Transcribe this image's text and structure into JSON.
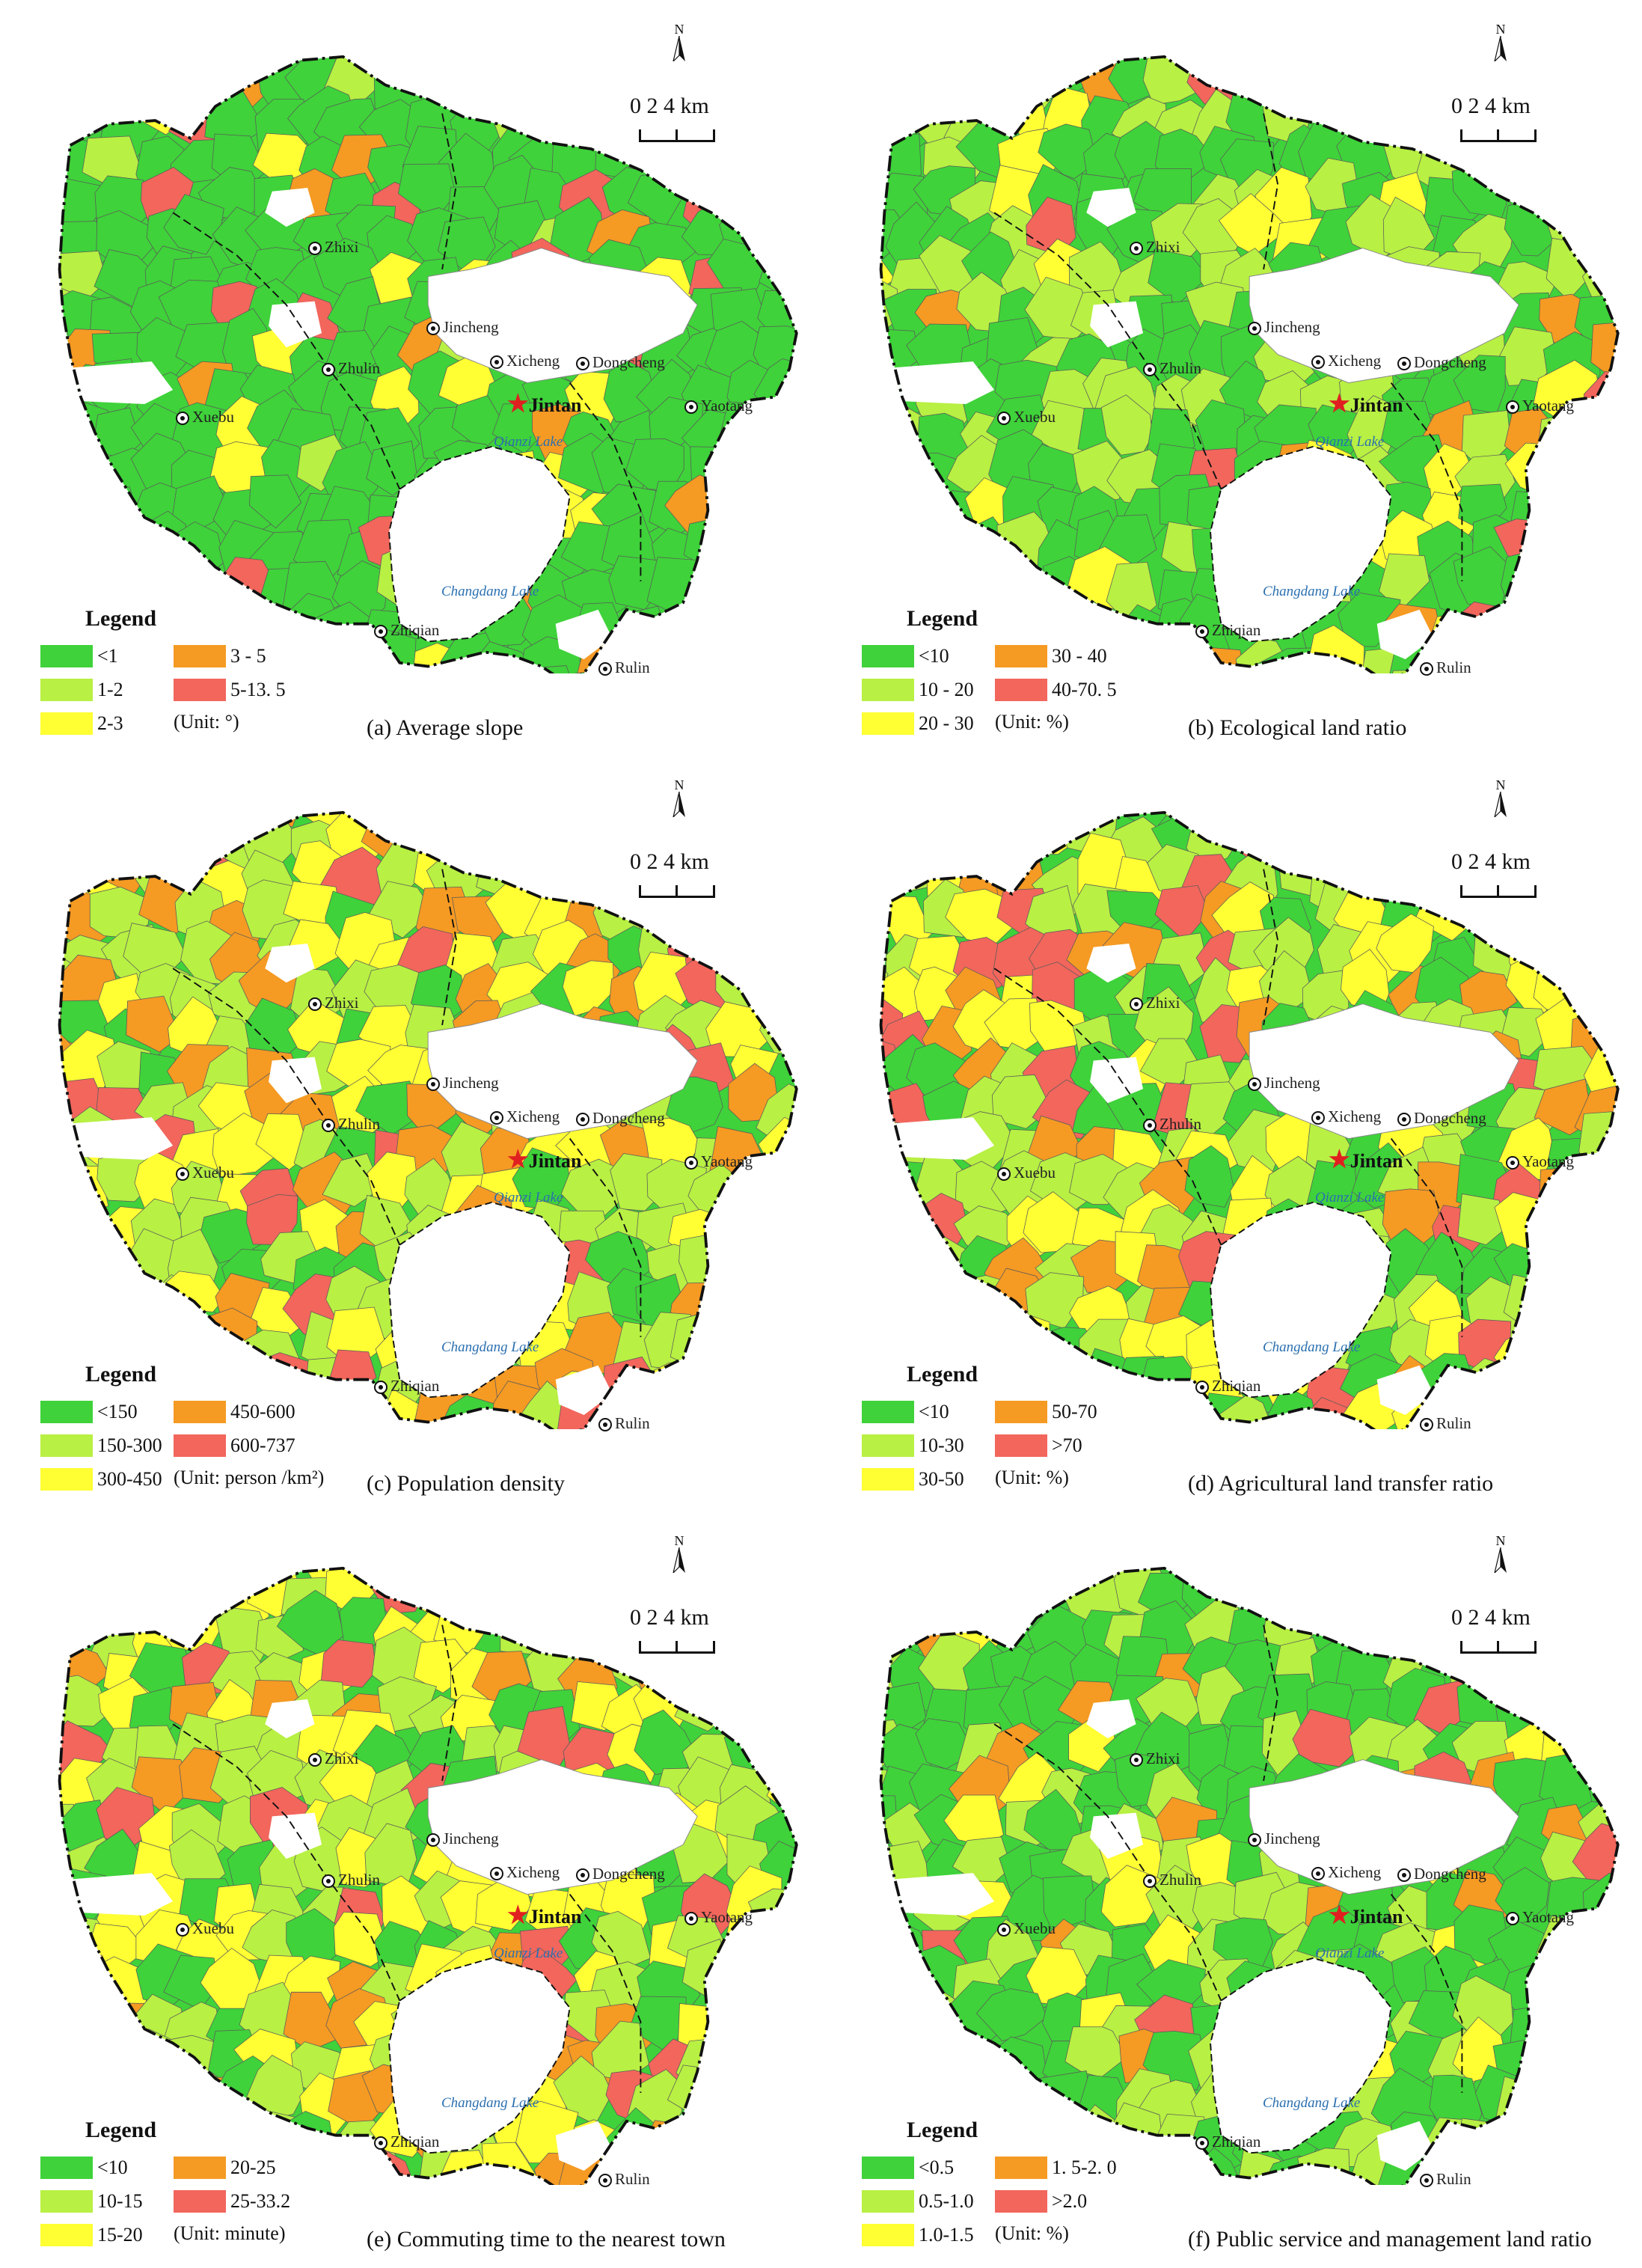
{
  "map_text": {
    "north_label": "N",
    "scale_ticks": "0   2   4 km",
    "legend_title": "Legend",
    "towns": [
      "Zhixi",
      "Zhulin",
      "Xuebu",
      "Jincheng",
      "Xicheng",
      "Dongcheng",
      "Yaotang",
      "Zhiqian",
      "Rulin"
    ],
    "city": "Jintan",
    "lakes": [
      "Qianzi Lake",
      "Changdang Lake"
    ]
  },
  "colors": {
    "class1": "#3fd23a",
    "class2": "#b8f043",
    "class3": "#ffff33",
    "class4": "#f59a23",
    "class5": "#f2665c",
    "urban": "#ffffff",
    "boundary": "#111111"
  },
  "panels": [
    {
      "caption": "(a) Average slope",
      "legend": [
        "<1",
        "1-2",
        "2-3",
        "3 - 5",
        "5-13. 5"
      ],
      "unit": "(Unit: °)"
    },
    {
      "caption": "(b) Ecological land ratio",
      "legend": [
        "<10",
        "10 - 20",
        "20 - 30",
        "30 - 40",
        "40-70. 5"
      ],
      "unit": "(Unit: %)"
    },
    {
      "caption": "(c) Population density",
      "legend": [
        "<150",
        "150-300",
        "300-450",
        "450-600",
        "600-737"
      ],
      "unit": "(Unit: person /km²)"
    },
    {
      "caption": "(d) Agricultural land transfer ratio",
      "legend": [
        "<10",
        "10-30",
        "30-50",
        "50-70",
        ">70"
      ],
      "unit": "(Unit: %)"
    },
    {
      "caption": "(e) Commuting time to the nearest town",
      "legend": [
        "<10",
        "10-15",
        "15-20",
        "20-25",
        "25-33.2"
      ],
      "unit": "(Unit: minute)"
    },
    {
      "caption": "(f) Public service and management land ratio",
      "legend": [
        "<0.5",
        "0.5-1.0",
        "1.0-1.5",
        "1. 5-2. 0",
        ">2.0"
      ],
      "unit": "(Unit: %)"
    }
  ]
}
